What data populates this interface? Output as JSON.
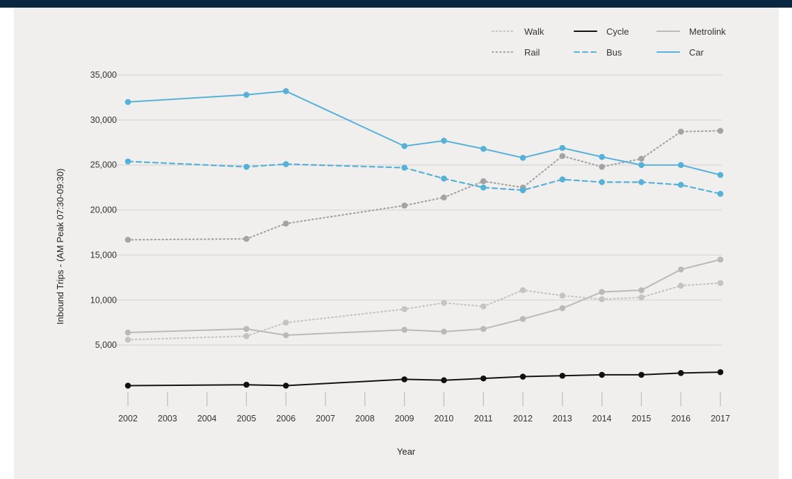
{
  "colors": {
    "background": "#f0efed",
    "header_bar": "#0a2742",
    "gridline": "#d6d6d6",
    "walk": "#c4c4c4",
    "cycle": "#111111",
    "metrolink": "#b9b9b9",
    "rail": "#a3a3a3",
    "bus": "#55b1d8",
    "car": "#55b1d8"
  },
  "chart_data": {
    "type": "line",
    "title": "",
    "xlabel": "Year",
    "ylabel": "Inbound Trips - (AM Peak 07:30-09:30)",
    "x_ticks": [
      "2002",
      "2003",
      "2004",
      "2005",
      "2006",
      "2007",
      "2008",
      "2009",
      "2010",
      "2011",
      "2012",
      "2013",
      "2014",
      "2015",
      "2016",
      "2017"
    ],
    "y_ticks": [
      "5,000",
      "10,000",
      "15,000",
      "20,000",
      "25,000",
      "30,000",
      "35,000"
    ],
    "y_tick_values": [
      5000,
      10000,
      15000,
      20000,
      25000,
      30000,
      35000
    ],
    "ylim": [
      0,
      35000
    ],
    "xlim": [
      2002,
      2017
    ],
    "grid": "horizontal",
    "legend_position": "top-right",
    "legend": [
      "Walk",
      "Cycle",
      "Metrolink",
      "Rail",
      "Bus",
      "Car"
    ],
    "series": [
      {
        "name": "Walk",
        "style": "dotted",
        "color": "#c4c4c4",
        "x": [
          2002,
          2005,
          2006,
          2009,
          2010,
          2011,
          2012,
          2013,
          2014,
          2015,
          2016,
          2017
        ],
        "values": [
          5600,
          6000,
          7500,
          9000,
          9700,
          9300,
          11100,
          10500,
          10100,
          10300,
          11600,
          11900
        ]
      },
      {
        "name": "Cycle",
        "style": "solid",
        "color": "#111111",
        "x": [
          2002,
          2005,
          2006,
          2009,
          2010,
          2011,
          2012,
          2013,
          2014,
          2015,
          2016,
          2017
        ],
        "values": [
          500,
          600,
          500,
          1200,
          1100,
          1300,
          1500,
          1600,
          1700,
          1700,
          1900,
          2000
        ]
      },
      {
        "name": "Metrolink",
        "style": "solid",
        "color": "#b9b9b9",
        "x": [
          2002,
          2005,
          2006,
          2009,
          2010,
          2011,
          2012,
          2013,
          2014,
          2015,
          2016,
          2017
        ],
        "values": [
          6400,
          6800,
          6100,
          6700,
          6500,
          6800,
          7900,
          9100,
          10900,
          11100,
          13400,
          14500
        ]
      },
      {
        "name": "Rail",
        "style": "dotted",
        "color": "#a3a3a3",
        "x": [
          2002,
          2005,
          2006,
          2009,
          2010,
          2011,
          2012,
          2013,
          2014,
          2015,
          2016,
          2017
        ],
        "values": [
          16700,
          16800,
          18500,
          20500,
          21400,
          23200,
          22500,
          26000,
          24800,
          25700,
          28700,
          28800
        ]
      },
      {
        "name": "Bus",
        "style": "dashed",
        "color": "#55b1d8",
        "x": [
          2002,
          2005,
          2006,
          2009,
          2010,
          2011,
          2012,
          2013,
          2014,
          2015,
          2016,
          2017
        ],
        "values": [
          25400,
          24800,
          25100,
          24700,
          23500,
          22500,
          22200,
          23400,
          23100,
          23100,
          22800,
          21800
        ]
      },
      {
        "name": "Car",
        "style": "solid",
        "color": "#55b1d8",
        "x": [
          2002,
          2005,
          2006,
          2009,
          2010,
          2011,
          2012,
          2013,
          2014,
          2015,
          2016,
          2017
        ],
        "values": [
          32000,
          32800,
          33200,
          27100,
          27700,
          26800,
          25800,
          26900,
          25900,
          25000,
          25000,
          23900
        ]
      }
    ]
  }
}
